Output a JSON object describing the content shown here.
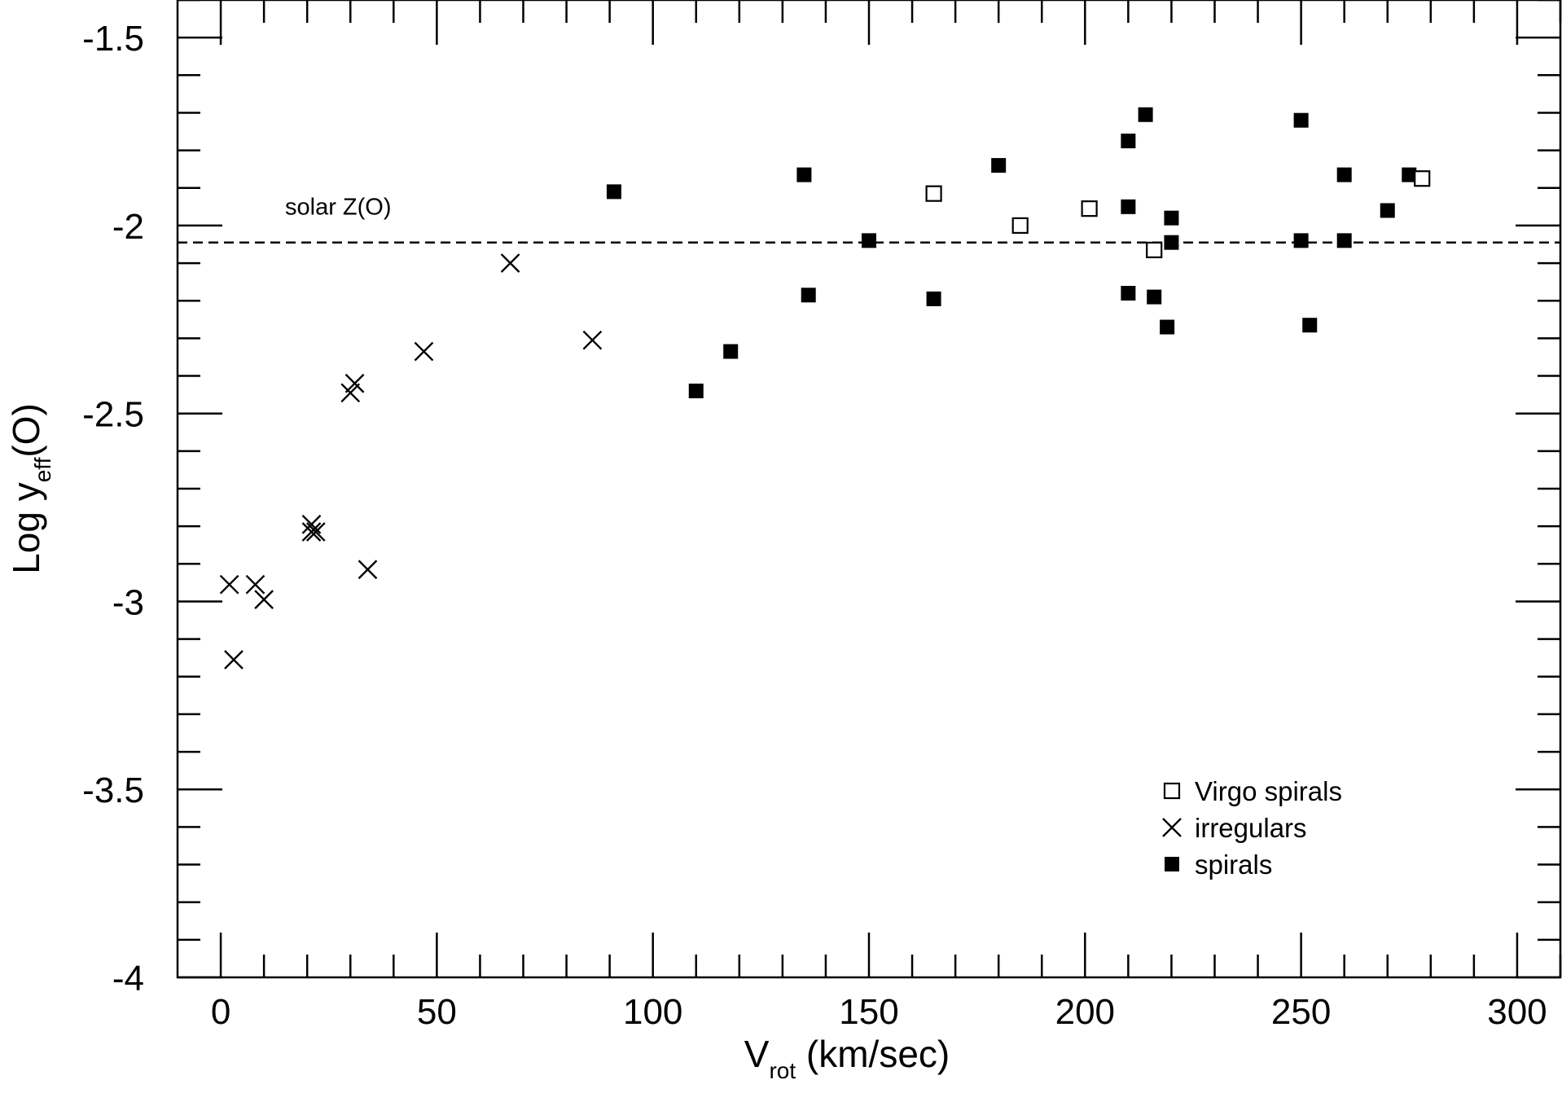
{
  "chart_data": {
    "type": "scatter",
    "xlim": [
      -10,
      310
    ],
    "ylim": [
      -4,
      -1.4
    ],
    "x_ticks": [
      0,
      50,
      100,
      150,
      200,
      250,
      300
    ],
    "x_tick_labels": [
      "0",
      "50",
      "100",
      "150",
      "200",
      "250",
      "300"
    ],
    "y_ticks": [
      -1.5,
      -2,
      -2.5,
      -3,
      -3.5,
      -4
    ],
    "y_tick_labels": [
      "-1.5",
      "-2",
      "-2.5",
      "-3",
      "-3.5",
      "-4"
    ],
    "x_minor_step": 10,
    "y_minor_step": 0.1,
    "xlabel": {
      "main": "V",
      "sub": "rot",
      "rest": " (km/sec)"
    },
    "ylabel": {
      "main": "Log y",
      "sub": "eff",
      "rest": "(O)"
    },
    "grid": false,
    "legend_position": "bottom-right",
    "reference_line": {
      "y": -2.045,
      "style": "dashed",
      "label": "solar Z(O)"
    },
    "series": [
      {
        "name": "Virgo spirals",
        "marker": "open-square",
        "color": "#000000",
        "points": [
          [
            165,
            -1.915
          ],
          [
            185,
            -2.0
          ],
          [
            201,
            -1.955
          ],
          [
            216,
            -2.065
          ],
          [
            278,
            -1.875
          ]
        ]
      },
      {
        "name": "irregulars",
        "marker": "x",
        "color": "#000000",
        "points": [
          [
            2,
            -2.955
          ],
          [
            3,
            -3.155
          ],
          [
            8,
            -2.955
          ],
          [
            10,
            -2.995
          ],
          [
            21,
            -2.795
          ],
          [
            21,
            -2.815
          ],
          [
            22,
            -2.815
          ],
          [
            30,
            -2.445
          ],
          [
            31,
            -2.42
          ],
          [
            34,
            -2.915
          ],
          [
            47,
            -2.335
          ],
          [
            67,
            -2.1
          ],
          [
            86,
            -2.305
          ]
        ]
      },
      {
        "name": "spirals",
        "marker": "filled-square",
        "color": "#000000",
        "points": [
          [
            91,
            -1.91
          ],
          [
            110,
            -2.44
          ],
          [
            118,
            -2.335
          ],
          [
            135,
            -1.865
          ],
          [
            136,
            -2.185
          ],
          [
            150,
            -2.04
          ],
          [
            165,
            -2.195
          ],
          [
            180,
            -1.84
          ],
          [
            210,
            -1.775
          ],
          [
            210,
            -1.95
          ],
          [
            210,
            -2.18
          ],
          [
            214,
            -1.705
          ],
          [
            216,
            -2.19
          ],
          [
            219,
            -2.27
          ],
          [
            220,
            -1.98
          ],
          [
            220,
            -2.045
          ],
          [
            250,
            -1.72
          ],
          [
            250,
            -2.04
          ],
          [
            252,
            -2.265
          ],
          [
            260,
            -1.865
          ],
          [
            260,
            -2.04
          ],
          [
            270,
            -1.96
          ],
          [
            275,
            -1.865
          ]
        ]
      }
    ]
  }
}
